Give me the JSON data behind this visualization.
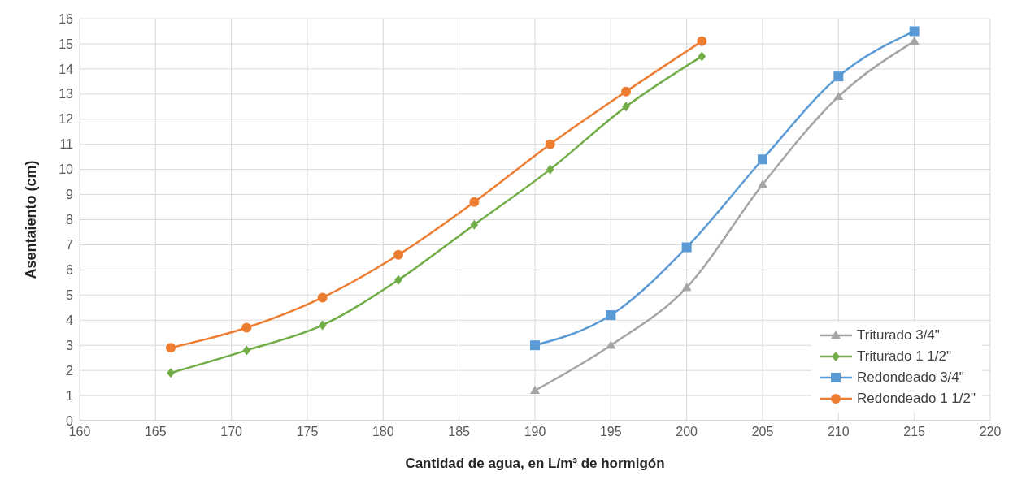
{
  "chart_data": {
    "type": "line",
    "xlabel": "Cantidad de agua, en L/m³ de hormigón",
    "ylabel": "Asentaiento (cm)",
    "xlim": [
      160,
      220
    ],
    "xticks": [
      160,
      165,
      170,
      175,
      180,
      185,
      190,
      195,
      200,
      205,
      210,
      215,
      220
    ],
    "ylim": [
      0,
      16
    ],
    "yticks": [
      0,
      1,
      2,
      3,
      4,
      5,
      6,
      7,
      8,
      9,
      10,
      11,
      12,
      13,
      14,
      15,
      16
    ],
    "grid": true,
    "legend": "bottom right",
    "series": [
      {
        "name": "Triturado 3/4\"",
        "color": "#a5a5a5",
        "marker": "triangle",
        "x": [
          190,
          195,
          200,
          205,
          210,
          215
        ],
        "values": [
          1.2,
          3.0,
          5.3,
          9.4,
          12.9,
          15.1
        ]
      },
      {
        "name": "Triturado 1 1/2\"",
        "color": "#70ad47",
        "marker": "diamond",
        "x": [
          166,
          171,
          176,
          181,
          186,
          191,
          196,
          201
        ],
        "values": [
          1.9,
          2.8,
          3.8,
          5.6,
          7.8,
          10.0,
          12.5,
          14.5
        ]
      },
      {
        "name": "Redondeado 3/4\"",
        "color": "#5b9bd5",
        "marker": "square",
        "x": [
          190,
          195,
          200,
          205,
          210,
          215
        ],
        "values": [
          3.0,
          4.2,
          6.9,
          10.4,
          13.7,
          15.5
        ]
      },
      {
        "name": "Redondeado 1 1/2\"",
        "color": "#ed7d31",
        "marker": "circle",
        "x": [
          166,
          171,
          176,
          181,
          186,
          191,
          196,
          201
        ],
        "values": [
          2.9,
          3.7,
          4.9,
          6.6,
          8.7,
          11.0,
          13.1,
          15.1
        ]
      }
    ]
  }
}
